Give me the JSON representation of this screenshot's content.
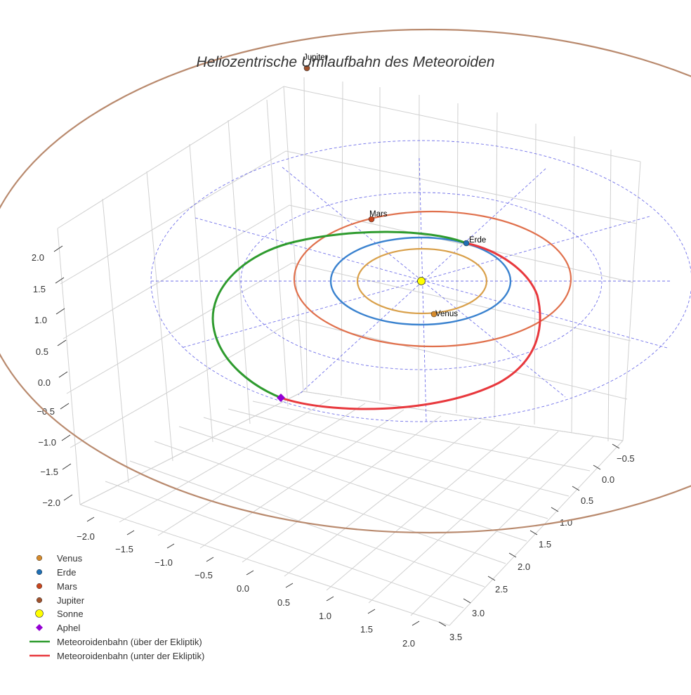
{
  "chart_data": {
    "type": "scatter",
    "title": "Heliozentrische Umlaufbahn des Meteoroiden",
    "axes": {
      "x": {
        "ticks": [
          "−2.0",
          "−1.5",
          "−1.0",
          "−0.5",
          "0.0",
          "0.5",
          "1.0",
          "1.5",
          "2.0"
        ]
      },
      "y": {
        "ticks": [
          "−0.5",
          "0.0",
          "0.5",
          "1.0",
          "1.5",
          "2.0",
          "2.5",
          "3.0",
          "3.5"
        ]
      },
      "z": {
        "ticks": [
          "2.0",
          "1.5",
          "1.0",
          "0.5",
          "0.0",
          "−0.5",
          "−1.0",
          "−1.5",
          "−2.0"
        ]
      }
    },
    "grid": true,
    "legend_position": "bottom-left",
    "planets": [
      {
        "name": "Venus",
        "label": "Venus",
        "orbit_radius_au": 0.72,
        "color": "#d58a2c",
        "orbit_color": "#d9a04a"
      },
      {
        "name": "Erde",
        "label": "Erde",
        "orbit_radius_au": 1.0,
        "color": "#1f6fb4",
        "orbit_color": "#3a82cf"
      },
      {
        "name": "Mars",
        "label": "Mars",
        "orbit_radius_au": 1.52,
        "color": "#c8461e",
        "orbit_color": "#e0704c"
      },
      {
        "name": "Jupiter",
        "label": "Jupiter",
        "orbit_radius_au": 5.2,
        "color": "#a0522d",
        "orbit_color": "#b98a6e"
      }
    ],
    "sun": {
      "name": "Sonne",
      "color": "#ffff00"
    },
    "aphel": {
      "name": "Aphel",
      "color": "#9400d3"
    },
    "series": [
      {
        "name": "Meteoroidenbahn (über der Ekliptik)",
        "color": "#2e9b2e"
      },
      {
        "name": "Meteoroidenbahn (unter der Ekliptik)",
        "color": "#e8383d"
      }
    ],
    "legend": [
      {
        "label": "Venus",
        "marker": "circle",
        "color": "#d58a2c"
      },
      {
        "label": "Erde",
        "marker": "circle",
        "color": "#1f6fb4"
      },
      {
        "label": "Mars",
        "marker": "circle",
        "color": "#c8461e"
      },
      {
        "label": "Jupiter",
        "marker": "circle",
        "color": "#a0522d"
      },
      {
        "label": "Sonne",
        "marker": "circle-large",
        "color": "#ffff00"
      },
      {
        "label": "Aphel",
        "marker": "diamond",
        "color": "#9400d3"
      },
      {
        "label": "Meteoroidenbahn (über der Ekliptik)",
        "marker": "line",
        "color": "#2e9b2e"
      },
      {
        "label": "Meteoroidenbahn (unter der Ekliptik)",
        "marker": "line",
        "color": "#e8383d"
      }
    ],
    "reference_grid_color": "#5a5ae6"
  }
}
